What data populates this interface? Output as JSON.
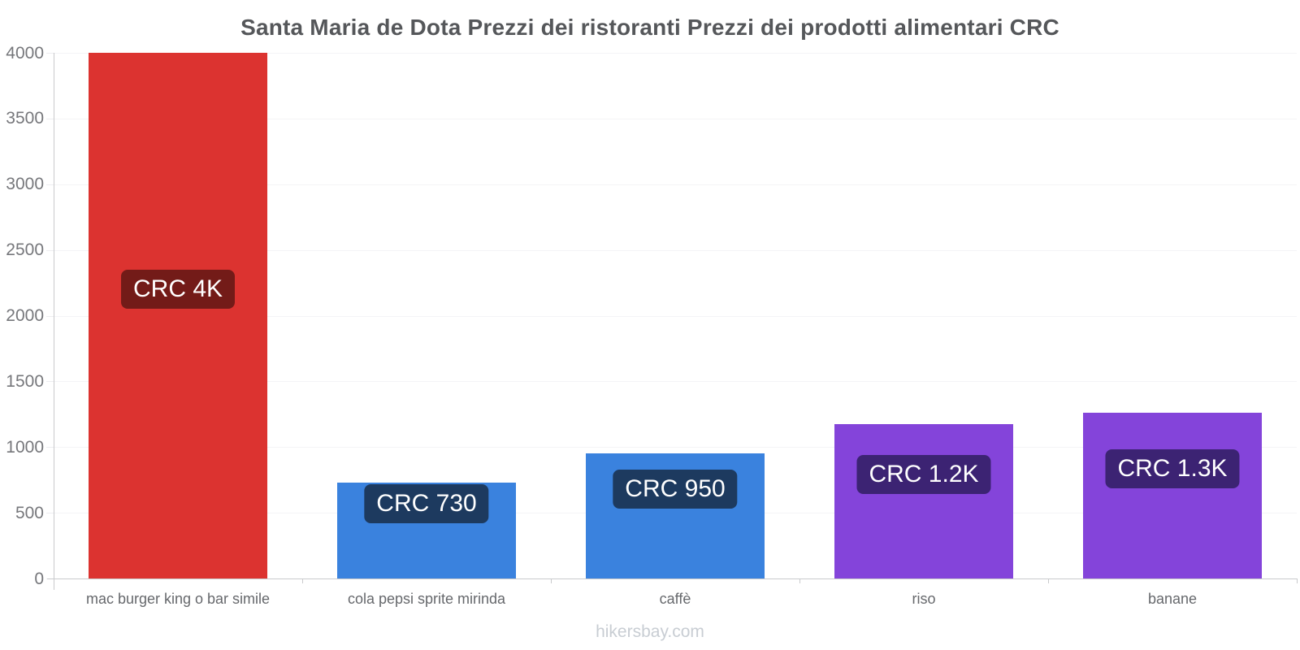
{
  "title": "Santa Maria de Dota Prezzi dei ristoranti Prezzi dei prodotti alimentari CRC",
  "footer": "hikersbay.com",
  "chart_data": {
    "type": "bar",
    "title": "Santa Maria de Dota Prezzi dei ristoranti Prezzi dei prodotti alimentari CRC",
    "currency": "CRC",
    "categories": [
      "mac burger king o bar simile",
      "cola pepsi sprite mirinda",
      "caffè",
      "riso",
      "banane"
    ],
    "values": [
      4000,
      730,
      950,
      1175,
      1260
    ],
    "value_labels": [
      "CRC 4K",
      "CRC 730",
      "CRC 950",
      "CRC 1.2K",
      "CRC 1.3K"
    ],
    "bar_colors": [
      "#dc3330",
      "#3a82de",
      "#3a82de",
      "#8444da",
      "#8444da"
    ],
    "badge_colors": [
      "#731b18",
      "#1d3a5f",
      "#1d3a5f",
      "#3c2373",
      "#3c2373"
    ],
    "xlabel": "",
    "ylabel": "",
    "ylim": [
      0,
      4000
    ],
    "yticks": [
      0,
      500,
      1000,
      1500,
      2000,
      2500,
      3000,
      3500,
      4000
    ],
    "grid": true,
    "legend": "none",
    "watermark": "hikersbay.com"
  }
}
